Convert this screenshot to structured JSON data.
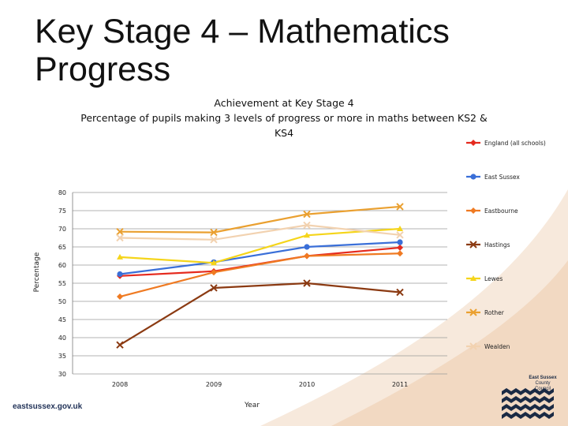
{
  "slide": {
    "title_line1": "Key Stage 4 – Mathematics",
    "title_line2": "Progress",
    "footer_url": "eastsussex.gov.uk",
    "logo_text_line1": "East Sussex",
    "logo_text_line2": "County Council"
  },
  "chart_data": {
    "type": "line",
    "title": "Achievement at Key Stage 4",
    "subtitle_line1": "Percentage of pupils making 3 levels of progress or more in maths between KS2 &",
    "subtitle_line2": "KS4",
    "xlabel": "Year",
    "ylabel": "Percentage",
    "categories": [
      "2008",
      "2009",
      "2010",
      "2011"
    ],
    "ylim": [
      30,
      80
    ],
    "yticks": [
      30,
      35,
      40,
      45,
      50,
      55,
      60,
      65,
      70,
      75,
      80
    ],
    "grid": true,
    "legend_position": "right",
    "series": [
      {
        "name": "England (all schools)",
        "color": "#e52a1e",
        "marker": "diamond",
        "values": [
          57,
          58.3,
          62.5,
          64.8
        ]
      },
      {
        "name": "East Sussex",
        "color": "#3a6fd8",
        "marker": "circle",
        "values": [
          57.5,
          60.8,
          65,
          66.3
        ]
      },
      {
        "name": "Eastbourne",
        "color": "#ef7a22",
        "marker": "diamond",
        "values": [
          51.3,
          58,
          62.5,
          63.2
        ]
      },
      {
        "name": "Hastings",
        "color": "#8b3a12",
        "marker": "x",
        "values": [
          38,
          53.7,
          55,
          52.5
        ]
      },
      {
        "name": "Lewes",
        "color": "#f5d51b",
        "marker": "triangle",
        "values": [
          62.2,
          60.6,
          68.2,
          70
        ]
      },
      {
        "name": "Rother",
        "color": "#eaa030",
        "marker": "x",
        "values": [
          69.2,
          69,
          74,
          76.1
        ]
      },
      {
        "name": "Wealden",
        "color": "#f2d2b0",
        "marker": "x",
        "values": [
          67.5,
          67,
          71,
          68.3
        ]
      }
    ]
  }
}
